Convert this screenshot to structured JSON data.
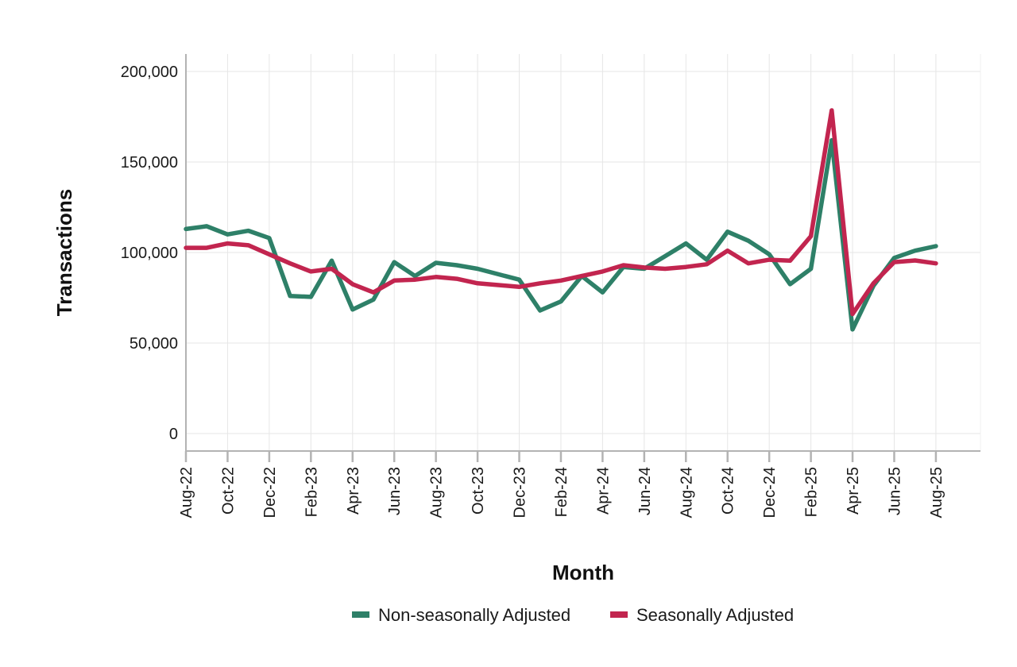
{
  "chart_data": {
    "type": "line",
    "title": "",
    "xlabel": "Month",
    "ylabel": "Transactions",
    "ylim": [
      -10000,
      210000
    ],
    "yticks": [
      0,
      50000,
      100000,
      150000,
      200000
    ],
    "ytick_labels": [
      "0",
      "50,000",
      "100,000",
      "150,000",
      "200,000"
    ],
    "grid": true,
    "legend_position": "bottom",
    "x": [
      "Aug-22",
      "Sep-22",
      "Oct-22",
      "Nov-22",
      "Dec-22",
      "Jan-23",
      "Feb-23",
      "Mar-23",
      "Apr-23",
      "May-23",
      "Jun-23",
      "Jul-23",
      "Aug-23",
      "Sep-23",
      "Oct-23",
      "Nov-23",
      "Dec-23",
      "Jan-24",
      "Feb-24",
      "Mar-24",
      "Apr-24",
      "May-24",
      "Jun-24",
      "Jul-24",
      "Aug-24",
      "Sep-24",
      "Oct-24",
      "Nov-24",
      "Dec-24",
      "Jan-25",
      "Feb-25",
      "Mar-25",
      "Apr-25",
      "May-25",
      "Jun-25",
      "Jul-25",
      "Aug-25"
    ],
    "xtick_labels": [
      "Aug-22",
      "Oct-22",
      "Dec-22",
      "Feb-23",
      "Apr-23",
      "Jun-23",
      "Aug-23",
      "Oct-23",
      "Dec-23",
      "Feb-24",
      "Apr-24",
      "Jun-24",
      "Aug-24",
      "Oct-24",
      "Dec-24",
      "Feb-25",
      "Apr-25",
      "Jun-25",
      "Aug-25"
    ],
    "series": [
      {
        "name": "Non-seasonally Adjusted",
        "color": "#2e8068",
        "values": [
          113000,
          114500,
          110000,
          112000,
          108000,
          76000,
          75500,
          95500,
          68500,
          74000,
          94700,
          87000,
          94300,
          93000,
          91000,
          88000,
          85000,
          68000,
          73000,
          87000,
          78000,
          92000,
          91000,
          98000,
          105000,
          96000,
          111500,
          106500,
          99000,
          82500,
          91000,
          162000,
          57500,
          81600,
          97000,
          101000,
          103500
        ]
      },
      {
        "name": "Seasonally Adjusted",
        "color": "#c2254f",
        "values": [
          102600,
          102600,
          105000,
          104000,
          99000,
          94000,
          89500,
          91000,
          82500,
          78000,
          84500,
          85000,
          86500,
          85500,
          83000,
          82000,
          81000,
          83000,
          84500,
          87000,
          89500,
          93000,
          91700,
          91000,
          92000,
          93500,
          101000,
          94000,
          96000,
          95500,
          109000,
          178500,
          66000,
          83000,
          94700,
          95600,
          94000
        ]
      }
    ]
  }
}
